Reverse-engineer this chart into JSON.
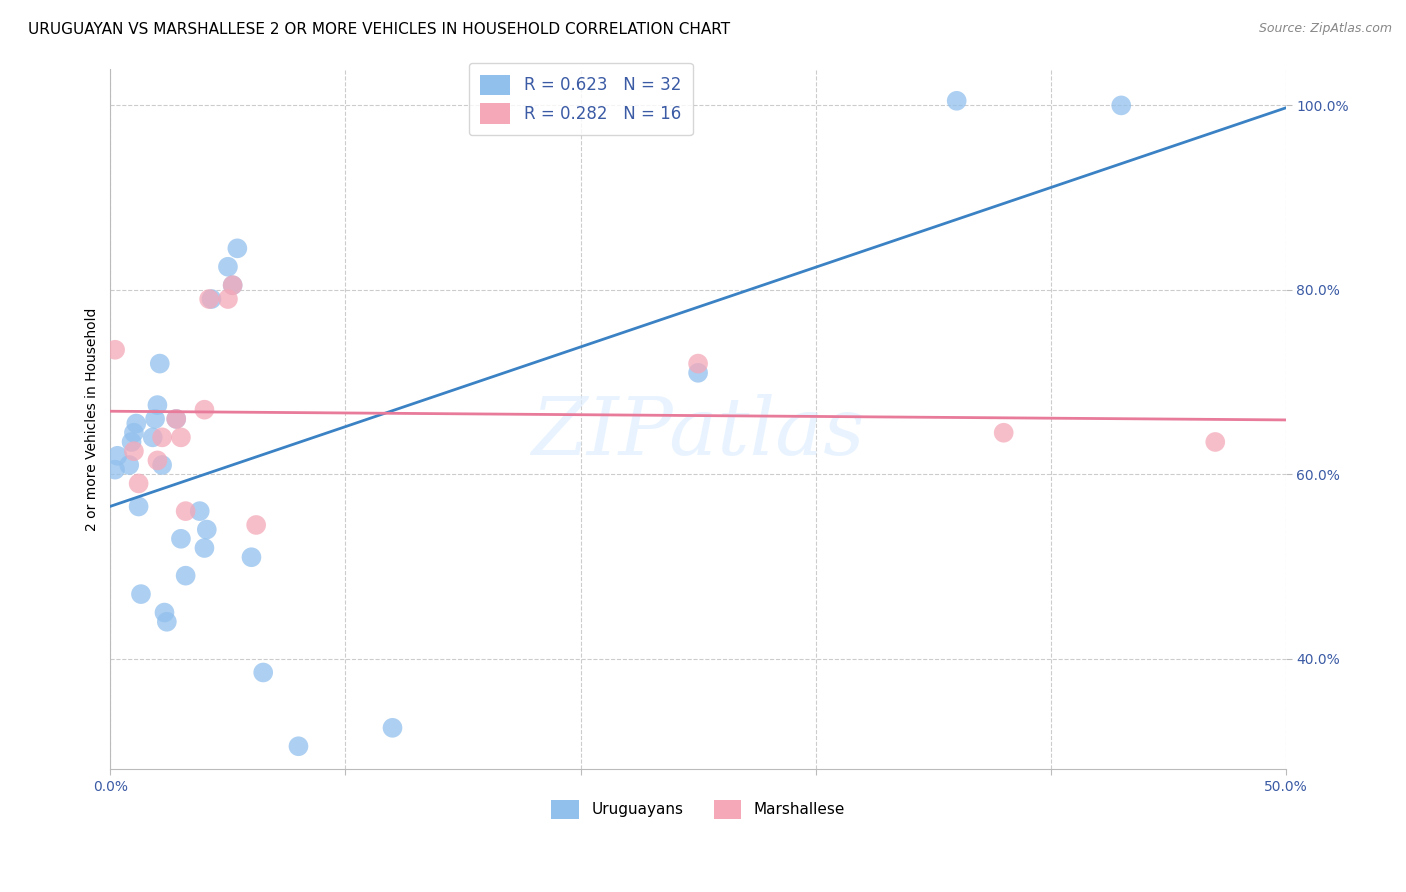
{
  "title": "URUGUAYAN VS MARSHALLESE 2 OR MORE VEHICLES IN HOUSEHOLD CORRELATION CHART",
  "source": "Source: ZipAtlas.com",
  "ylabel": "2 or more Vehicles in Household",
  "watermark": "ZIPatlas",
  "xmin": 0.0,
  "xmax": 0.5,
  "ymin": 0.28,
  "ymax": 1.04,
  "xticks": [
    0.0,
    0.1,
    0.2,
    0.3,
    0.4,
    0.5
  ],
  "xtick_labels": [
    "0.0%",
    "",
    "",
    "",
    "",
    "50.0%"
  ],
  "yticks": [
    0.4,
    0.6,
    0.8,
    1.0
  ],
  "ytick_labels": [
    "40.0%",
    "60.0%",
    "80.0%",
    "100.0%"
  ],
  "uruguayan_color": "#92C0ED",
  "marshallese_color": "#F4A8B8",
  "uruguayan_line_color": "#3B82C4",
  "marshallese_line_color": "#E87A9A",
  "R_uruguayan": 0.623,
  "N_uruguayan": 32,
  "R_marshallese": 0.282,
  "N_marshallese": 16,
  "legend_label_color": "#3B5BA5",
  "uruguayan_x": [
    0.002,
    0.003,
    0.008,
    0.009,
    0.01,
    0.011,
    0.012,
    0.013,
    0.018,
    0.019,
    0.02,
    0.021,
    0.022,
    0.023,
    0.024,
    0.028,
    0.03,
    0.032,
    0.038,
    0.04,
    0.041,
    0.043,
    0.05,
    0.052,
    0.054,
    0.06,
    0.065,
    0.08,
    0.12,
    0.25,
    0.36,
    0.43
  ],
  "uruguayan_y": [
    0.605,
    0.62,
    0.61,
    0.635,
    0.645,
    0.655,
    0.565,
    0.47,
    0.64,
    0.66,
    0.675,
    0.72,
    0.61,
    0.45,
    0.44,
    0.66,
    0.53,
    0.49,
    0.56,
    0.52,
    0.54,
    0.79,
    0.825,
    0.805,
    0.845,
    0.51,
    0.385,
    0.305,
    0.325,
    0.71,
    1.005,
    1.0
  ],
  "marshallese_x": [
    0.002,
    0.01,
    0.012,
    0.02,
    0.022,
    0.028,
    0.03,
    0.032,
    0.04,
    0.042,
    0.05,
    0.052,
    0.062,
    0.25,
    0.38,
    0.47
  ],
  "marshallese_y": [
    0.735,
    0.625,
    0.59,
    0.615,
    0.64,
    0.66,
    0.64,
    0.56,
    0.67,
    0.79,
    0.79,
    0.805,
    0.545,
    0.72,
    0.645,
    0.635
  ],
  "grid_color": "#CCCCCC",
  "grid_style": "--",
  "background_color": "#FFFFFF",
  "title_fontsize": 11,
  "axis_label_fontsize": 10,
  "tick_fontsize": 10,
  "legend_fontsize": 12
}
